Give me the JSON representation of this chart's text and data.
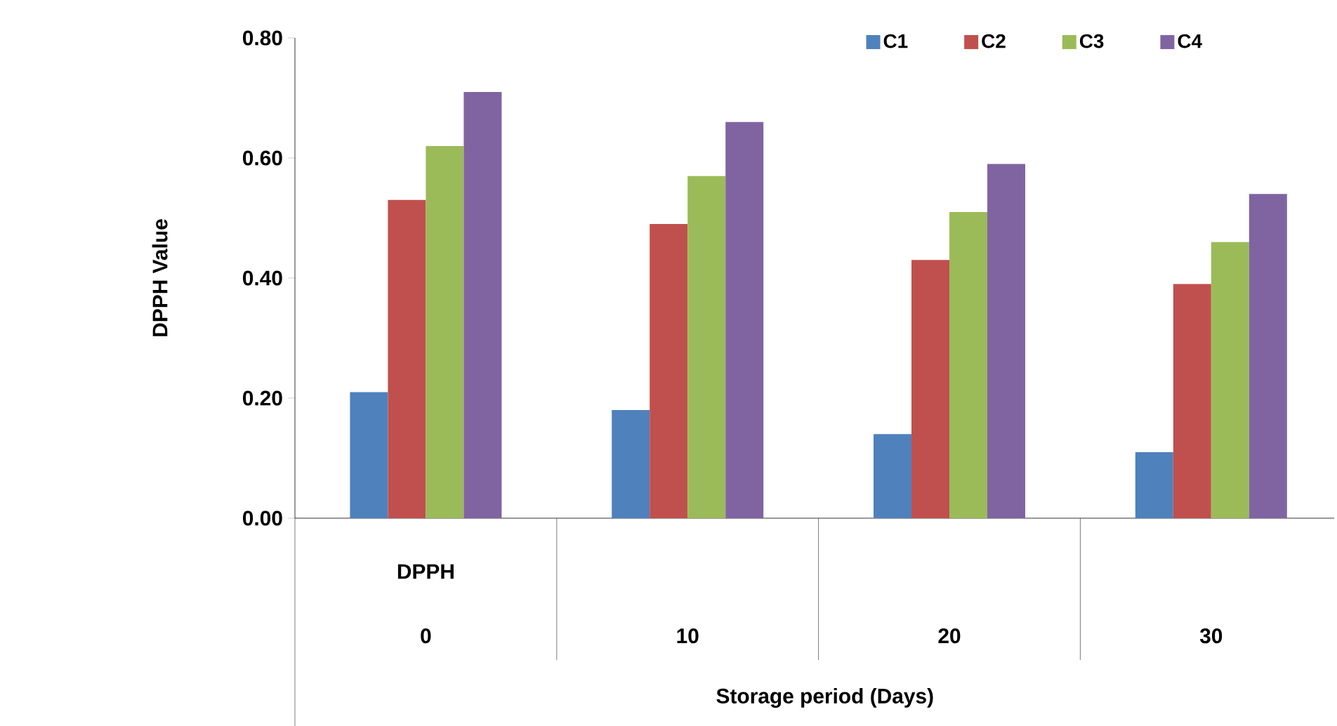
{
  "chart_data": {
    "type": "bar",
    "xlabel": "Storage period (Days)",
    "ylabel": "DPPH Value",
    "categories": [
      "0",
      "10",
      "20",
      "30"
    ],
    "series": [
      {
        "name": "C1",
        "color": "#4f81bd",
        "values": [
          0.21,
          0.18,
          0.14,
          0.11
        ]
      },
      {
        "name": "C2",
        "color": "#c0504d",
        "values": [
          0.53,
          0.49,
          0.43,
          0.39
        ]
      },
      {
        "name": "C3",
        "color": "#9bbb59",
        "values": [
          0.62,
          0.57,
          0.51,
          0.46
        ]
      },
      {
        "name": "C4",
        "color": "#8064a2",
        "values": [
          0.71,
          0.66,
          0.59,
          0.54
        ]
      }
    ],
    "ylim": [
      0,
      0.8
    ],
    "yticks": [
      {
        "value": 0,
        "label": "0.00"
      },
      {
        "value": 0.2,
        "label": "0.20"
      },
      {
        "value": 0.4,
        "label": "0.40"
      },
      {
        "value": 0.6,
        "label": "0.60"
      },
      {
        "value": 0.8,
        "label": "0.80"
      }
    ],
    "legend": "top right",
    "annotations": [
      "DPPH"
    ]
  }
}
